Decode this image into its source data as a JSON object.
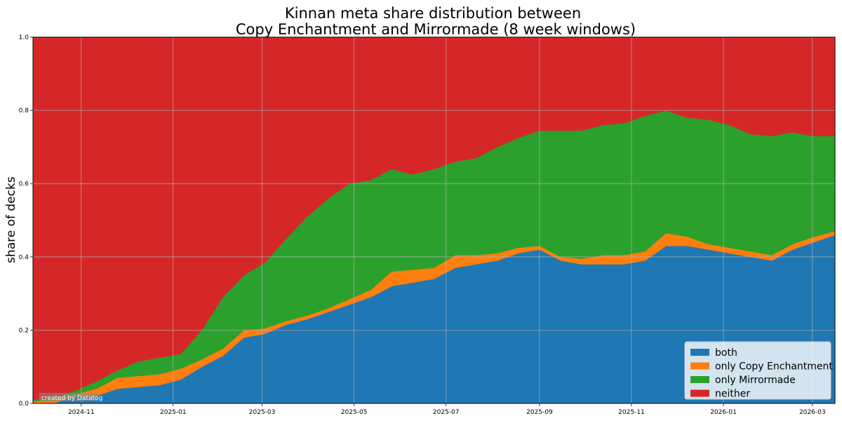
{
  "chart_data": {
    "type": "area",
    "stacked": true,
    "title": "Kinnan meta share distribution between",
    "subtitle": "Copy Enchantment and Mirrormade (8 week windows)",
    "xlabel": "",
    "ylabel": "share of decks",
    "ylim": [
      0,
      1
    ],
    "xlim": [
      "2024-09-30",
      "2026-03-16"
    ],
    "grid": true,
    "legend_position": "bottom-right",
    "watermark": "created by Datatog",
    "x_ticks": [
      "2024-11",
      "2025-01",
      "2025-03",
      "2025-05",
      "2025-07",
      "2025-09",
      "2025-11",
      "2026-01",
      "2026-03"
    ],
    "y_ticks": [
      "0.0",
      "0.2",
      "0.4",
      "0.6",
      "0.8",
      "1.0"
    ],
    "x": [
      "2024-09-30",
      "2024-10-14",
      "2024-10-28",
      "2024-11-11",
      "2024-11-25",
      "2024-12-09",
      "2024-12-23",
      "2025-01-06",
      "2025-01-20",
      "2025-02-03",
      "2025-02-17",
      "2025-03-03",
      "2025-03-17",
      "2025-03-31",
      "2025-04-14",
      "2025-04-28",
      "2025-05-12",
      "2025-05-26",
      "2025-06-09",
      "2025-06-23",
      "2025-07-07",
      "2025-07-21",
      "2025-08-04",
      "2025-08-18",
      "2025-09-01",
      "2025-09-15",
      "2025-09-29",
      "2025-10-13",
      "2025-10-27",
      "2025-11-10",
      "2025-11-24",
      "2025-12-08",
      "2025-12-22",
      "2026-01-05",
      "2026-01-19",
      "2026-02-02",
      "2026-02-16",
      "2026-03-02",
      "2026-03-16"
    ],
    "series": [
      {
        "name": "both",
        "color": "#1f77b4",
        "values": [
          0.0,
          0.0,
          0.02,
          0.02,
          0.04,
          0.045,
          0.05,
          0.065,
          0.1,
          0.13,
          0.18,
          0.19,
          0.215,
          0.23,
          0.25,
          0.27,
          0.29,
          0.32,
          0.33,
          0.34,
          0.37,
          0.38,
          0.39,
          0.41,
          0.42,
          0.39,
          0.38,
          0.38,
          0.38,
          0.39,
          0.43,
          0.43,
          0.42,
          0.41,
          0.4,
          0.39,
          0.42,
          0.44,
          0.46
        ]
      },
      {
        "name": "only Copy Enchantment",
        "color": "#ff7f0e",
        "values": [
          0.005,
          0.01,
          0.005,
          0.02,
          0.03,
          0.03,
          0.03,
          0.03,
          0.02,
          0.02,
          0.02,
          0.015,
          0.01,
          0.01,
          0.01,
          0.015,
          0.02,
          0.04,
          0.035,
          0.03,
          0.035,
          0.025,
          0.02,
          0.015,
          0.01,
          0.01,
          0.015,
          0.025,
          0.025,
          0.025,
          0.035,
          0.025,
          0.015,
          0.015,
          0.015,
          0.015,
          0.015,
          0.015,
          0.01
        ]
      },
      {
        "name": "only Mirrormade",
        "color": "#2ca02c",
        "values": [
          0.005,
          0.005,
          0.01,
          0.02,
          0.02,
          0.04,
          0.045,
          0.04,
          0.08,
          0.14,
          0.15,
          0.18,
          0.225,
          0.27,
          0.3,
          0.315,
          0.3,
          0.28,
          0.26,
          0.27,
          0.255,
          0.265,
          0.29,
          0.3,
          0.315,
          0.345,
          0.35,
          0.355,
          0.36,
          0.37,
          0.335,
          0.325,
          0.34,
          0.335,
          0.32,
          0.325,
          0.305,
          0.275,
          0.26
        ]
      },
      {
        "name": "neither",
        "color": "#d62728",
        "values": [
          0.99,
          0.985,
          0.965,
          0.94,
          0.91,
          0.885,
          0.875,
          0.865,
          0.8,
          0.71,
          0.65,
          0.615,
          0.55,
          0.49,
          0.44,
          0.4,
          0.39,
          0.36,
          0.375,
          0.36,
          0.34,
          0.33,
          0.3,
          0.275,
          0.255,
          0.255,
          0.255,
          0.24,
          0.235,
          0.215,
          0.2,
          0.22,
          0.225,
          0.24,
          0.265,
          0.27,
          0.26,
          0.27,
          0.27
        ]
      }
    ]
  }
}
